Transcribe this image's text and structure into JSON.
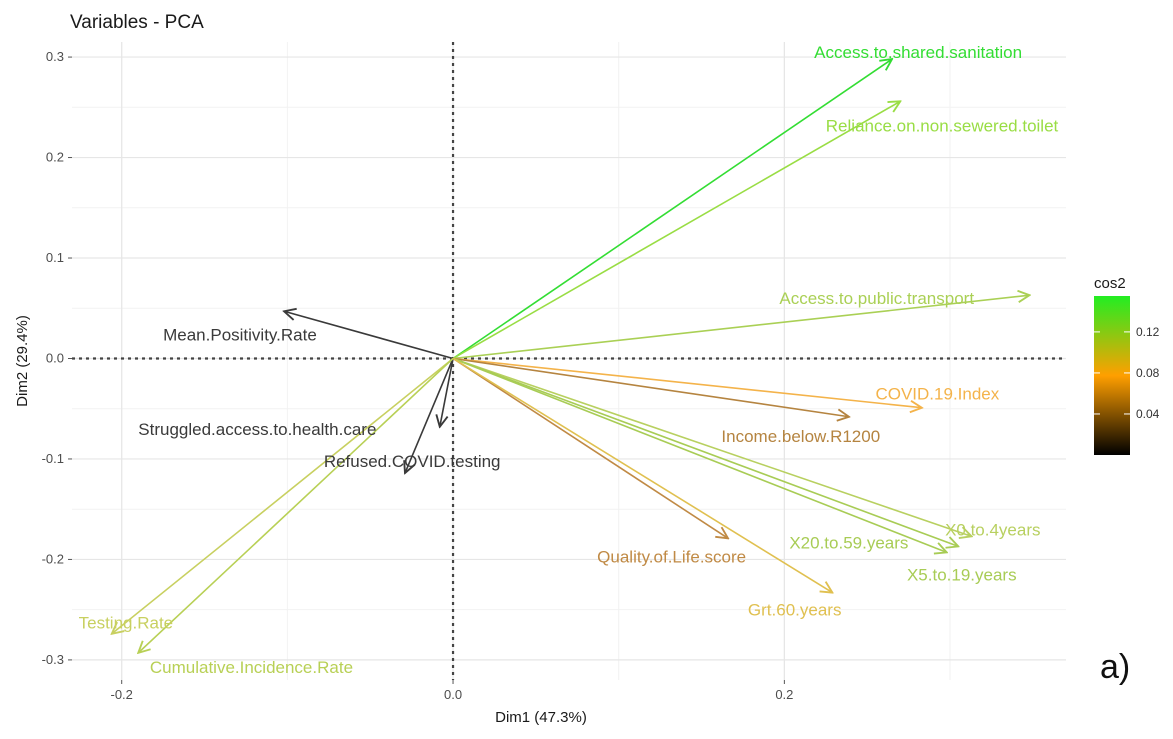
{
  "panel_label": "a)",
  "chart_data": {
    "type": "scatter",
    "subtype": "pca-variable-biplot",
    "title": "Variables - PCA",
    "xlabel": "Dim1 (47.3%)",
    "ylabel": "Dim2 (29.4%)",
    "xlim": [
      -0.23,
      0.37
    ],
    "ylim": [
      -0.32,
      0.315
    ],
    "x_ticks": [
      -0.2,
      0.0,
      0.2
    ],
    "x_tick_labels": [
      "-0.2",
      "0.0",
      "0.2"
    ],
    "y_ticks": [
      0.3,
      0.2,
      0.1,
      0.0,
      -0.1,
      -0.2,
      -0.3
    ],
    "y_tick_labels": [
      "0.3",
      "0.2",
      "0.1",
      "0.0",
      "-0.1",
      "-0.2",
      "-0.3"
    ],
    "grid": true,
    "reference_lines": "dashed lines at x = 0 and y = 0",
    "legend": {
      "title": "cos2",
      "placement": "right",
      "ticks": [
        0.12,
        0.08,
        0.04
      ],
      "tick_labels": [
        "0.12",
        "0.08",
        "0.04"
      ],
      "range": [
        0.0,
        0.155
      ],
      "colors": [
        "#000000",
        "#ff9f00",
        "#22ee22"
      ]
    },
    "variables": [
      {
        "label": "Access.to.shared.sanitation",
        "x": 0.265,
        "y": 0.298,
        "cos2": 0.155,
        "color": "#33dd33",
        "label_x": 0.218,
        "label_y": 0.305
      },
      {
        "label": "Reliance.on.non.sewered.toilet",
        "x": 0.27,
        "y": 0.256,
        "cos2": 0.145,
        "color": "#99dd44",
        "label_x": 0.225,
        "label_y": 0.232
      },
      {
        "label": "Access.to.public.transport",
        "x": 0.348,
        "y": 0.063,
        "cos2": 0.14,
        "color": "#aad055",
        "label_x": 0.197,
        "label_y": 0.06
      },
      {
        "label": "Mean.Positivity.Rate",
        "x": -0.102,
        "y": 0.047,
        "cos2": 0.01,
        "color": "#3a3a3a",
        "label_x": -0.175,
        "label_y": 0.024
      },
      {
        "label": "COVID.19.Index",
        "x": 0.283,
        "y": -0.049,
        "cos2": 0.1,
        "color": "#f4b34a",
        "label_x": 0.255,
        "label_y": -0.035
      },
      {
        "label": "Income.below.R1200",
        "x": 0.239,
        "y": -0.058,
        "cos2": 0.06,
        "color": "#b58440",
        "label_x": 0.162,
        "label_y": -0.077
      },
      {
        "label": "Struggled.access.to.health.care",
        "x": -0.008,
        "y": -0.068,
        "cos2": 0.01,
        "color": "#3a3a3a",
        "label_x": -0.19,
        "label_y": -0.07
      },
      {
        "label": "Refused.COVID.testing",
        "x": -0.029,
        "y": -0.114,
        "cos2": 0.01,
        "color": "#3a3a3a",
        "label_x": -0.078,
        "label_y": -0.102
      },
      {
        "label": "X0.to.4years",
        "x": 0.313,
        "y": -0.177,
        "cos2": 0.135,
        "color": "#b8d060",
        "label_x": 0.297,
        "label_y": -0.17
      },
      {
        "label": "X20.to.59.years",
        "x": 0.305,
        "y": -0.187,
        "cos2": 0.135,
        "color": "#a8cc55",
        "label_x": 0.203,
        "label_y": -0.183
      },
      {
        "label": "X5.to.19.years",
        "x": 0.298,
        "y": -0.193,
        "cos2": 0.135,
        "color": "#a8cc55",
        "label_x": 0.274,
        "label_y": -0.215
      },
      {
        "label": "Quality.of.Life.score",
        "x": 0.166,
        "y": -0.179,
        "cos2": 0.07,
        "color": "#c08a45",
        "label_x": 0.087,
        "label_y": -0.197
      },
      {
        "label": "Grt.60.years",
        "x": 0.229,
        "y": -0.233,
        "cos2": 0.11,
        "color": "#e0c050",
        "label_x": 0.178,
        "label_y": -0.25
      },
      {
        "label": "Testing.Rate",
        "x": -0.206,
        "y": -0.274,
        "cos2": 0.12,
        "color": "#c8d060",
        "label_x": -0.226,
        "label_y": -0.263
      },
      {
        "label": "Cumulative.Incidence.Rate",
        "x": -0.19,
        "y": -0.293,
        "cos2": 0.12,
        "color": "#b8d055",
        "label_x": -0.183,
        "label_y": -0.307
      }
    ]
  }
}
